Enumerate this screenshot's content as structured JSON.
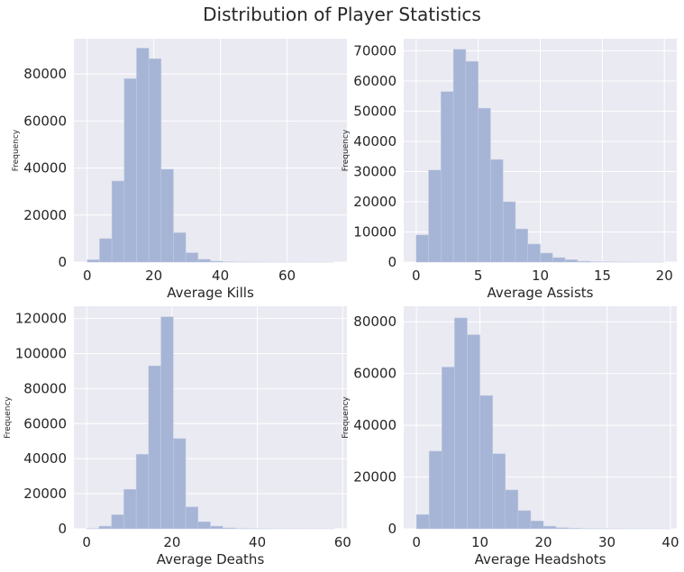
{
  "figure": {
    "title": "Distribution of Player Statistics"
  },
  "colors": {
    "axes_bg": "#EAEAF2",
    "grid": "#FFFFFF",
    "bar": "#A6B5D6",
    "text": "#262626"
  },
  "chart_data": [
    {
      "type": "bar",
      "xlabel": "Average Kills",
      "ylabel": "Frequency",
      "bin_edges": [
        0,
        3.7,
        7.4,
        11.1,
        14.8,
        18.5,
        22.2,
        25.9,
        29.6,
        33.3,
        37.0,
        40.7,
        44.4,
        48.1,
        51.8,
        55.5,
        59.2,
        62.9,
        66.6,
        70.3,
        74.0
      ],
      "values": [
        1000,
        10000,
        34500,
        78000,
        91000,
        86500,
        39500,
        12500,
        4000,
        1200,
        400,
        150,
        50,
        30,
        20,
        10,
        5,
        5,
        3,
        2
      ],
      "xlim": [
        -4,
        78
      ],
      "ylim": [
        0,
        95000
      ],
      "xticks": [
        0,
        20,
        40,
        60
      ],
      "xtick_labels": [
        "0",
        "20",
        "40",
        "60"
      ],
      "yticks": [
        0,
        20000,
        40000,
        60000,
        80000
      ],
      "ytick_labels": [
        "0",
        "20000",
        "40000",
        "60000",
        "80000"
      ]
    },
    {
      "type": "bar",
      "xlabel": "Average Assists",
      "ylabel": "Frequency",
      "bin_edges": [
        0,
        1,
        2,
        3,
        4,
        5,
        6,
        7,
        8,
        9,
        10,
        11,
        12,
        13,
        14,
        15,
        16,
        17,
        18,
        19,
        20
      ],
      "values": [
        9000,
        30500,
        56500,
        70500,
        66500,
        51000,
        34000,
        20000,
        11000,
        6000,
        3000,
        1500,
        800,
        300,
        150,
        80,
        40,
        20,
        10,
        5
      ],
      "xlim": [
        -1,
        21
      ],
      "ylim": [
        0,
        74000
      ],
      "xticks": [
        0,
        5,
        10,
        15,
        20
      ],
      "xtick_labels": [
        "0",
        "5",
        "10",
        "15",
        "20"
      ],
      "yticks": [
        0,
        10000,
        20000,
        30000,
        40000,
        50000,
        60000,
        70000
      ],
      "ytick_labels": [
        "0",
        "10000",
        "20000",
        "30000",
        "40000",
        "50000",
        "60000",
        "70000"
      ]
    },
    {
      "type": "bar",
      "xlabel": "Average Deaths",
      "ylabel": "Frequency",
      "bin_edges": [
        0,
        2.9,
        5.8,
        8.7,
        11.6,
        14.5,
        17.4,
        20.3,
        23.2,
        26.1,
        29.0,
        31.9,
        34.8,
        37.7,
        40.6,
        43.5,
        46.4,
        49.3,
        52.2,
        55.1,
        58.0
      ],
      "values": [
        200,
        1500,
        8000,
        22500,
        42500,
        93000,
        121000,
        51500,
        12500,
        4000,
        1500,
        500,
        200,
        100,
        50,
        30,
        20,
        10,
        5,
        3
      ],
      "xlim": [
        -3,
        61
      ],
      "ylim": [
        0,
        127000
      ],
      "xticks": [
        0,
        20,
        40,
        60
      ],
      "xtick_labels": [
        "0",
        "20",
        "40",
        "60"
      ],
      "yticks": [
        0,
        20000,
        40000,
        60000,
        80000,
        100000,
        120000
      ],
      "ytick_labels": [
        "0",
        "20000",
        "40000",
        "60000",
        "80000",
        "100000",
        "120000"
      ]
    },
    {
      "type": "bar",
      "xlabel": "Average Headshots",
      "ylabel": "Frequency",
      "bin_edges": [
        0,
        2,
        4,
        6,
        8,
        10,
        12,
        14,
        16,
        18,
        20,
        22,
        24,
        26,
        28,
        30,
        32,
        34,
        36,
        38,
        40
      ],
      "values": [
        5500,
        30000,
        62500,
        81500,
        75000,
        51500,
        29000,
        15000,
        7000,
        3000,
        1000,
        400,
        200,
        100,
        50,
        30,
        20,
        10,
        5,
        3
      ],
      "xlim": [
        -2,
        41
      ],
      "ylim": [
        0,
        86000
      ],
      "xticks": [
        0,
        10,
        20,
        30,
        40
      ],
      "xtick_labels": [
        "0",
        "10",
        "20",
        "30",
        "40"
      ],
      "yticks": [
        0,
        20000,
        40000,
        60000,
        80000
      ],
      "ytick_labels": [
        "0",
        "20000",
        "40000",
        "60000",
        "80000"
      ]
    }
  ]
}
